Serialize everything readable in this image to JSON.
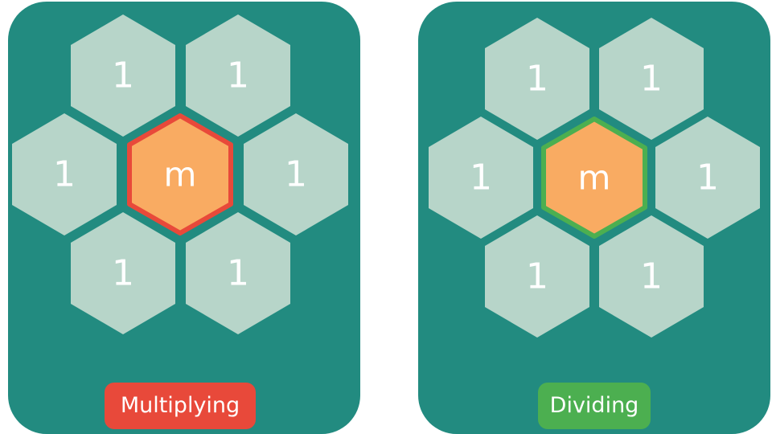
{
  "colors": {
    "panel_background": "#228b80",
    "outer_hex_fill": "#b7d5c9",
    "center_hex_fill": "#f9ab62",
    "text": "#ffffff"
  },
  "panels": [
    {
      "outer_values": [
        "1",
        "1",
        "1",
        "1",
        "1",
        "1"
      ],
      "center_value": "m",
      "highlight_color": "#e8493a",
      "label": "Multiplying",
      "label_color": "#e8493a"
    },
    {
      "outer_values": [
        "1",
        "1",
        "1",
        "1",
        "1",
        "1"
      ],
      "center_value": "m",
      "highlight_color": "#4caf50",
      "label": "Dividing",
      "label_color": "#4caf50"
    }
  ]
}
